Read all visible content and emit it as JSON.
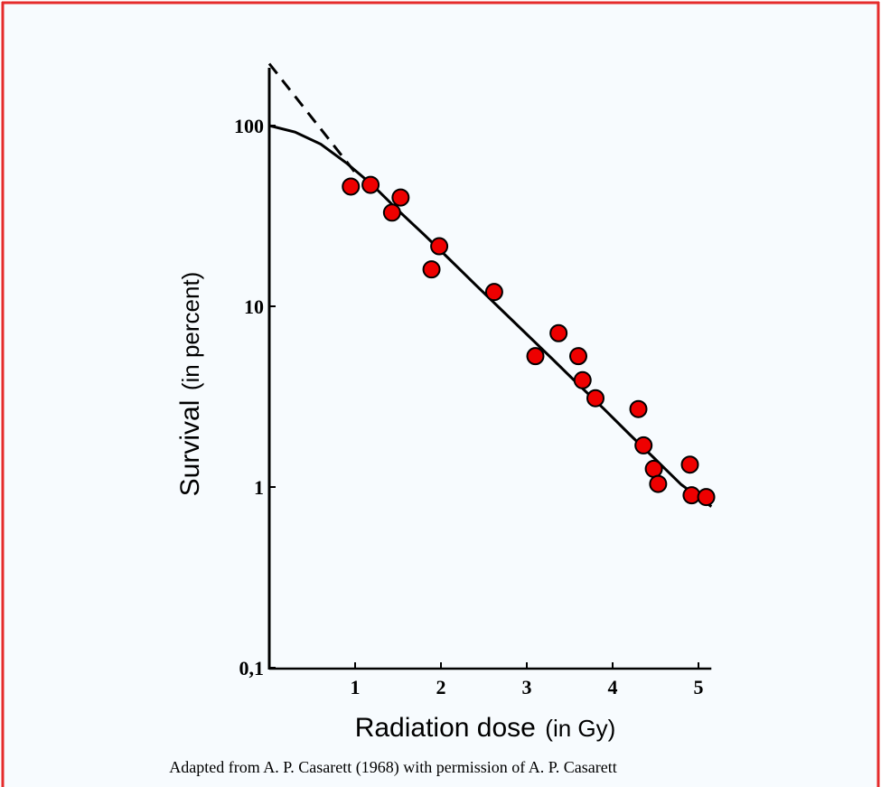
{
  "colors": {
    "background": "#f7fbfe",
    "frame_border": "#e52b2b",
    "point_fill": "#ee0000",
    "point_stroke": "#000000",
    "line": "#000000"
  },
  "chart_data": {
    "type": "scatter",
    "xlabel_main": "Radiation dose",
    "xlabel_unit": "(in Gy)",
    "ylabel_main": "Survival",
    "ylabel_unit": "(in percent)",
    "xlim": [
      0,
      5.1
    ],
    "ylim": [
      0.1,
      200
    ],
    "yscale": "log",
    "x_ticks": [
      1,
      2,
      3,
      4,
      5
    ],
    "x_tick_labels": [
      "1",
      "2",
      "3",
      "4",
      "5"
    ],
    "y_ticks": [
      0.1,
      1,
      10,
      100
    ],
    "y_tick_labels": [
      "0,1",
      "1",
      "10",
      "100"
    ],
    "grid": false,
    "legend": "none",
    "credit": "Adapted from A. P. Casarett (1968) with permission of A. P. Casarett",
    "points": [
      {
        "x": 0.95,
        "y": 46
      },
      {
        "x": 1.18,
        "y": 47
      },
      {
        "x": 1.43,
        "y": 33
      },
      {
        "x": 1.53,
        "y": 40
      },
      {
        "x": 1.89,
        "y": 16
      },
      {
        "x": 1.98,
        "y": 21.5
      },
      {
        "x": 2.62,
        "y": 12
      },
      {
        "x": 3.1,
        "y": 5.3
      },
      {
        "x": 3.37,
        "y": 7.1
      },
      {
        "x": 3.6,
        "y": 5.3
      },
      {
        "x": 3.65,
        "y": 3.9
      },
      {
        "x": 3.8,
        "y": 3.1
      },
      {
        "x": 4.3,
        "y": 2.7
      },
      {
        "x": 4.36,
        "y": 1.7
      },
      {
        "x": 4.48,
        "y": 1.26
      },
      {
        "x": 4.53,
        "y": 1.04
      },
      {
        "x": 4.9,
        "y": 1.33
      },
      {
        "x": 4.92,
        "y": 0.9
      },
      {
        "x": 5.09,
        "y": 0.88
      }
    ],
    "fit_curve": [
      {
        "x": 0,
        "y": 100
      },
      {
        "x": 0.3,
        "y": 92
      },
      {
        "x": 0.6,
        "y": 79
      },
      {
        "x": 0.9,
        "y": 62
      },
      {
        "x": 1.2,
        "y": 47
      },
      {
        "x": 1.5,
        "y": 34
      },
      {
        "x": 1.8,
        "y": 25
      },
      {
        "x": 2.1,
        "y": 18.2
      },
      {
        "x": 2.4,
        "y": 13.2
      },
      {
        "x": 2.7,
        "y": 9.6
      },
      {
        "x": 3.0,
        "y": 7.0
      },
      {
        "x": 3.3,
        "y": 5.1
      },
      {
        "x": 3.6,
        "y": 3.7
      },
      {
        "x": 3.9,
        "y": 2.7
      },
      {
        "x": 4.2,
        "y": 1.95
      },
      {
        "x": 4.5,
        "y": 1.42
      },
      {
        "x": 4.8,
        "y": 1.03
      },
      {
        "x": 5.15,
        "y": 0.78
      }
    ],
    "extrapolation_line": [
      {
        "x": 0,
        "y": 220
      },
      {
        "x": 1.0,
        "y": 55
      }
    ]
  }
}
